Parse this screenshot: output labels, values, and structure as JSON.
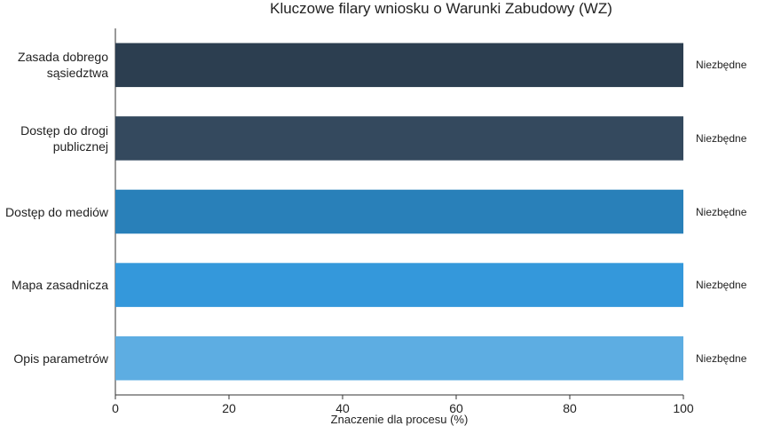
{
  "chart_data": {
    "type": "hbar",
    "title": "Kluczowe filary wniosku o Warunki Zabudowy (WZ)",
    "x_label": "Znaczenie dla procesu (%)",
    "categories": [
      "Zasada dobrego sąsiedztwa",
      "Dostęp do drogi publicznej",
      "Dostęp do mediów",
      "Mapa zasadnicza",
      "Opis parametrów"
    ],
    "values": [
      100,
      100,
      100,
      100,
      100
    ],
    "value_labels": [
      "Niezbędne",
      "Niezbędne",
      "Niezbędne",
      "Niezbędne",
      "Niezbędne"
    ],
    "colors": [
      "#2c3e50",
      "#34495e",
      "#2980b9",
      "#3498db",
      "#5dade2"
    ],
    "xlim": [
      0,
      100
    ],
    "xticks": [
      0,
      20,
      40,
      60,
      80,
      100
    ],
    "grid": false
  }
}
